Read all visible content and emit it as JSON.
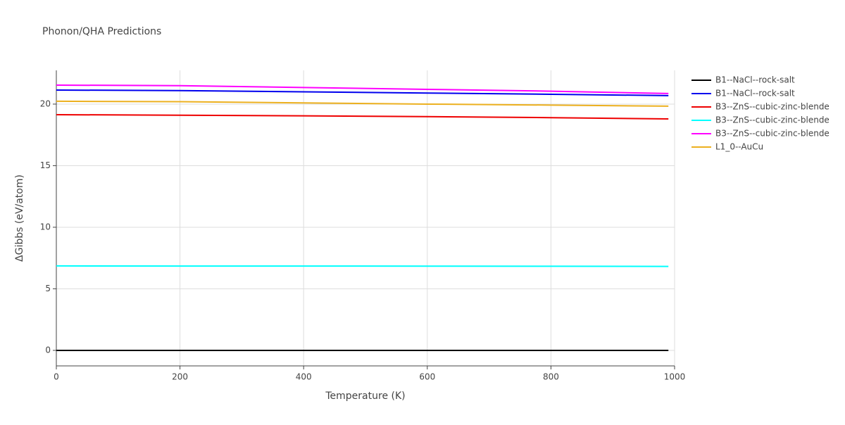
{
  "chart_data": {
    "type": "line",
    "title": "Phonon/QHA Predictions",
    "xlabel": "Temperature (K)",
    "ylabel": "ΔGibbs (eV/atom)",
    "x": [
      0,
      200,
      400,
      600,
      800,
      990
    ],
    "series": [
      {
        "name": "B1--NaCl--rock-salt",
        "color": "#000000",
        "values": [
          0,
          0,
          0,
          0,
          0,
          0
        ]
      },
      {
        "name": "B1--NaCl--rock-salt",
        "color": "#0000ee",
        "values": [
          21.14,
          21.1,
          21.0,
          20.9,
          20.8,
          20.69
        ]
      },
      {
        "name": "B3--ZnS--cubic-zinc-blende",
        "color": "#ee0000",
        "values": [
          19.14,
          19.1,
          19.05,
          18.98,
          18.9,
          18.8
        ]
      },
      {
        "name": "B3--ZnS--cubic-zinc-blende",
        "color": "#00ffff",
        "values": [
          6.86,
          6.85,
          6.85,
          6.84,
          6.83,
          6.82
        ]
      },
      {
        "name": "B3--ZnS--cubic-zinc-blende",
        "color": "#ff00ff",
        "values": [
          21.54,
          21.5,
          21.35,
          21.2,
          21.05,
          20.86
        ]
      },
      {
        "name": "L1_0--AuCu",
        "color": "#ecb01f",
        "values": [
          20.23,
          20.2,
          20.1,
          20.0,
          19.92,
          19.83
        ]
      }
    ],
    "xlim": [
      0,
      1000
    ],
    "xticks": [
      0,
      200,
      400,
      600,
      800,
      1000
    ],
    "ylim": [
      -1.26,
      22.74
    ],
    "yticks": [
      0,
      5,
      10,
      15,
      20
    ],
    "grid": true,
    "legend": "right"
  }
}
